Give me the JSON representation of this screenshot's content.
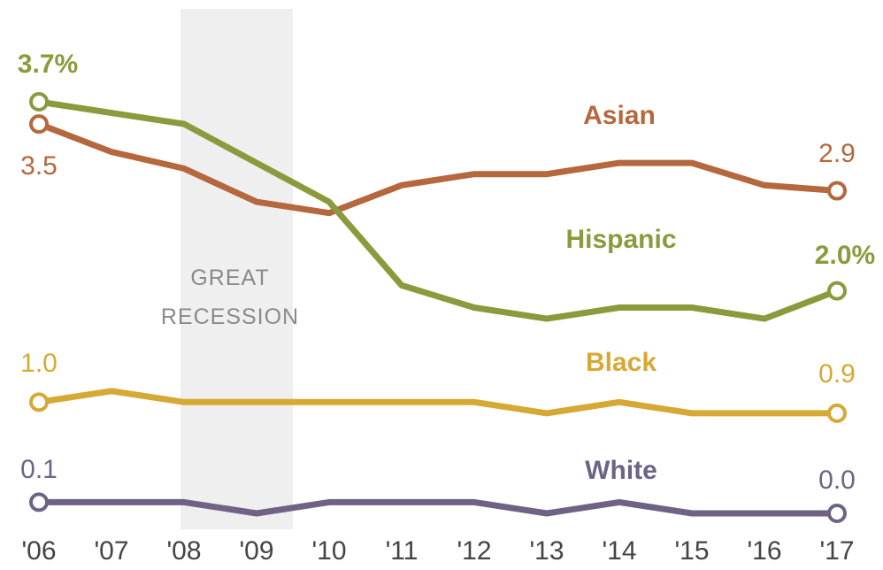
{
  "chart_data": {
    "type": "line",
    "x": [
      "'06",
      "'07",
      "'08",
      "'09",
      "'10",
      "'11",
      "'12",
      "'13",
      "'14",
      "'15",
      "'16",
      "'17"
    ],
    "ylim": [
      0,
      4
    ],
    "grid": false,
    "legend": "inline-labels",
    "shaded_period": {
      "label_line1": "GREAT",
      "label_line2": "RECESSION",
      "from": 2007.95,
      "to": 2009.5
    },
    "series": [
      {
        "name": "Asian",
        "color": "#b5673d",
        "values": [
          3.5,
          3.25,
          3.1,
          2.8,
          2.7,
          2.95,
          3.05,
          3.05,
          3.15,
          3.15,
          2.95,
          2.9
        ],
        "start_label": "3.5",
        "end_label": "2.9",
        "start_bold": false,
        "end_bold": false
      },
      {
        "name": "Hispanic",
        "color": "#8a9a3c",
        "values": [
          3.7,
          3.6,
          3.5,
          3.15,
          2.8,
          2.05,
          1.85,
          1.75,
          1.85,
          1.85,
          1.75,
          2.0
        ],
        "start_label": "3.7%",
        "end_label": "2.0%",
        "start_bold": true,
        "end_bold": true
      },
      {
        "name": "Black",
        "color": "#d6a934",
        "values": [
          1.0,
          1.1,
          1.0,
          1.0,
          1.0,
          1.0,
          1.0,
          0.9,
          1.0,
          0.9,
          0.9,
          0.9
        ],
        "start_label": "1.0",
        "end_label": "0.9",
        "start_bold": false,
        "end_bold": false
      },
      {
        "name": "White",
        "color": "#6e6384",
        "values": [
          0.1,
          0.1,
          0.1,
          0.0,
          0.1,
          0.1,
          0.1,
          0.0,
          0.1,
          0.0,
          0.0,
          0.0
        ],
        "start_label": "0.1",
        "end_label": "0.0",
        "start_bold": false,
        "end_bold": false
      }
    ]
  }
}
